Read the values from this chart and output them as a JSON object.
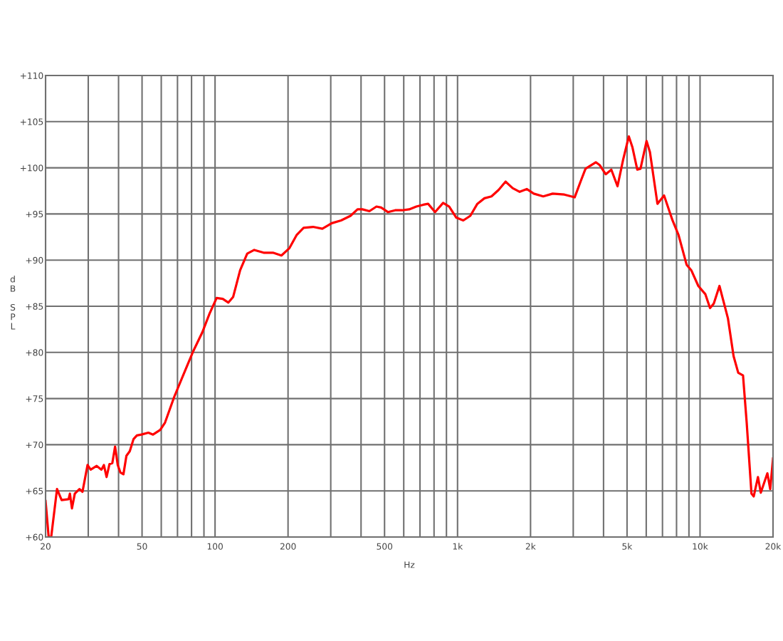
{
  "chart_data": {
    "type": "line",
    "xlabel": "Hz",
    "ylabel": "dB SPL",
    "log": "x",
    "grid": true,
    "marker": "none",
    "line_style": "solid",
    "xlim": [
      20,
      20000
    ],
    "ylim": [
      60,
      110
    ],
    "xticks": [
      20,
      {
        "value": 30,
        "label": null
      },
      {
        "value": 40,
        "label": null
      },
      50,
      {
        "value": 60,
        "label": null
      },
      {
        "value": 70,
        "label": null
      },
      {
        "value": 80,
        "label": null
      },
      {
        "value": 90,
        "label": null
      },
      100,
      200,
      {
        "value": 300,
        "label": null
      },
      {
        "value": 400,
        "label": null
      },
      500,
      {
        "value": 600,
        "label": null
      },
      {
        "value": 700,
        "label": null
      },
      {
        "value": 800,
        "label": null
      },
      {
        "value": 900,
        "label": null
      },
      {
        "value": 1000,
        "label": "1k"
      },
      {
        "value": 2000,
        "label": "2k"
      },
      {
        "value": 3000,
        "label": null
      },
      {
        "value": 4000,
        "label": null
      },
      {
        "value": 5000,
        "label": "5k"
      },
      {
        "value": 6000,
        "label": null
      },
      {
        "value": 7000,
        "label": null
      },
      {
        "value": 8000,
        "label": null
      },
      {
        "value": 9000,
        "label": null
      },
      {
        "value": 10000,
        "label": "10k"
      },
      {
        "value": 20000,
        "label": "20k"
      }
    ],
    "yticks": [
      {
        "value": 60,
        "label": "+60"
      },
      {
        "value": 65,
        "label": "+65"
      },
      {
        "value": 70,
        "label": "+70"
      },
      {
        "value": 75,
        "label": "+75"
      },
      {
        "value": 80,
        "label": "+80"
      },
      {
        "value": 85,
        "label": "+85"
      },
      {
        "value": 90,
        "label": "+90"
      },
      {
        "value": 95,
        "label": "+95"
      },
      {
        "value": 100,
        "label": "+100"
      },
      {
        "value": 105,
        "label": "+105"
      },
      {
        "value": 110,
        "label": "+110"
      }
    ],
    "series": [
      {
        "color": "#ff0000",
        "x": [
          20,
          20.6,
          21.1,
          22.3,
          23.3,
          24.9,
          25.2,
          25.7,
          26.4,
          27.6,
          28.4,
          29.8,
          30.7,
          32.5,
          34.0,
          34.8,
          35.7,
          36.7,
          37.7,
          38.7,
          39.7,
          40.7,
          41.9,
          43.1,
          44.5,
          46.1,
          47.6,
          49.7,
          53.1,
          55.5,
          59.4,
          62.2,
          67.9,
          76.0,
          81.2,
          88.7,
          94.9,
          101.5,
          107.6,
          113.5,
          118.7,
          126.9,
          135.7,
          145.1,
          158.6,
          173.3,
          187.8,
          202.7,
          216.8,
          231.8,
          253.5,
          277,
          303,
          331,
          362,
          387,
          405,
          433,
          463,
          484,
          517,
          553,
          591,
          632,
          676,
          723,
          756,
          808,
          872,
          924,
          988,
          1056,
          1129,
          1207,
          1291,
          1380,
          1476,
          1578,
          1687,
          1804,
          1929,
          2062,
          2256,
          2468,
          2758,
          3041,
          3226,
          3371,
          3717,
          3854,
          4083,
          4307,
          4568,
          4820,
          5085,
          5265,
          5510,
          5682,
          6018,
          6214,
          6674,
          7107,
          7702,
          8158,
          8802,
          9202,
          9838,
          10521,
          10996,
          11401,
          12026,
          13032,
          13750,
          14371,
          15041,
          15574,
          16296,
          16650,
          17333,
          17804,
          18954,
          19472,
          20000
        ],
        "values": [
          63.9,
          60.0,
          60.0,
          65.2,
          64.0,
          64.1,
          64.7,
          63.1,
          64.7,
          65.2,
          64.9,
          67.8,
          67.3,
          67.7,
          67.3,
          67.8,
          66.5,
          67.9,
          68.0,
          69.8,
          67.8,
          67.0,
          66.8,
          68.8,
          69.3,
          70.6,
          71.0,
          71.1,
          71.3,
          71.1,
          71.6,
          72.4,
          75.2,
          78.3,
          80.1,
          82.2,
          84.2,
          85.9,
          85.8,
          85.4,
          86.0,
          88.9,
          90.7,
          91.1,
          90.8,
          90.8,
          90.5,
          91.3,
          92.7,
          93.5,
          93.6,
          93.4,
          94.0,
          94.3,
          94.8,
          95.5,
          95.5,
          95.3,
          95.8,
          95.7,
          95.2,
          95.4,
          95.4,
          95.5,
          95.8,
          96.0,
          96.1,
          95.2,
          96.2,
          95.8,
          94.6,
          94.3,
          94.8,
          96.1,
          96.7,
          96.9,
          97.6,
          98.5,
          97.8,
          97.4,
          97.7,
          97.2,
          96.9,
          97.2,
          97.1,
          96.8,
          98.6,
          99.9,
          100.6,
          100.3,
          99.3,
          99.8,
          98.0,
          100.9,
          103.4,
          102.2,
          99.8,
          99.9,
          102.9,
          101.7,
          96.1,
          97.0,
          94.3,
          92.7,
          89.5,
          88.9,
          87.2,
          86.3,
          84.8,
          85.3,
          87.2,
          83.7,
          79.6,
          77.8,
          77.5,
          72.4,
          64.7,
          64.4,
          66.5,
          64.8,
          66.9,
          65.2,
          68.5
        ]
      }
    ]
  }
}
